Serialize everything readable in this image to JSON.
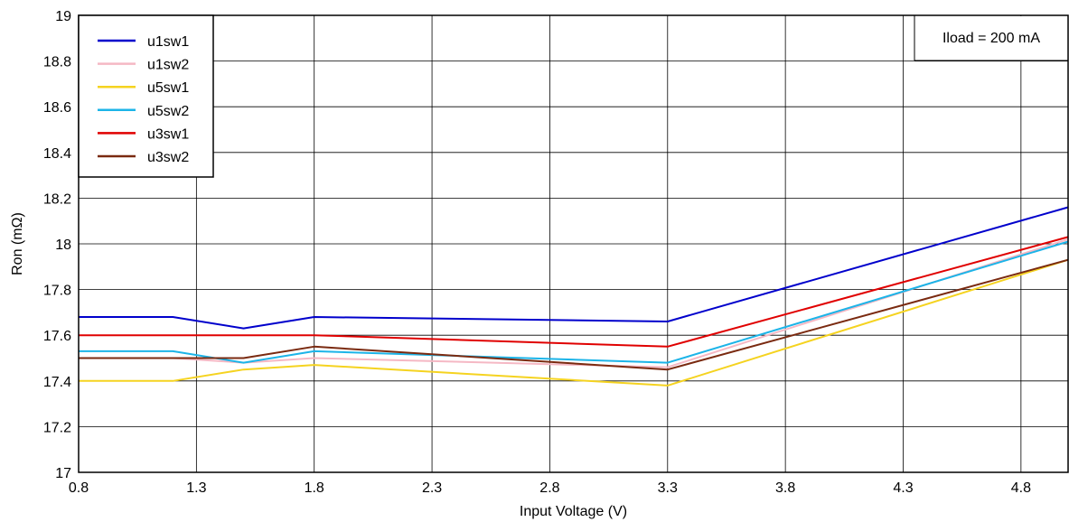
{
  "chart_data": {
    "type": "line",
    "title": "",
    "xlabel": "Input Voltage (V)",
    "ylabel": "Ron (mΩ)",
    "xlim": [
      0.8,
      5.0
    ],
    "ylim": [
      17,
      19
    ],
    "xticks": [
      "0.8",
      "1.3",
      "1.8",
      "2.3",
      "2.8",
      "3.3",
      "3.8",
      "4.3",
      "4.8"
    ],
    "yticks": [
      "17",
      "17.2",
      "17.4",
      "17.6",
      "17.8",
      "18",
      "18.2",
      "18.4",
      "18.6",
      "18.8",
      "19"
    ],
    "grid": true,
    "legend_position": "top-left",
    "annotation": "Iload = 200 mA",
    "series": [
      {
        "name": "u1sw1",
        "color": "#0000cc",
        "x": [
          0.8,
          1.2,
          1.5,
          1.8,
          3.3,
          5.0
        ],
        "y": [
          17.68,
          17.68,
          17.63,
          17.68,
          17.66,
          18.16
        ]
      },
      {
        "name": "u1sw2",
        "color": "#f5b8c4",
        "x": [
          0.8,
          1.2,
          1.5,
          1.8,
          3.3,
          5.0
        ],
        "y": [
          17.5,
          17.5,
          17.48,
          17.5,
          17.46,
          18.02
        ]
      },
      {
        "name": "u5sw1",
        "color": "#f5d320",
        "x": [
          0.8,
          1.2,
          1.5,
          1.8,
          3.3,
          5.0
        ],
        "y": [
          17.4,
          17.4,
          17.45,
          17.47,
          17.38,
          17.93
        ]
      },
      {
        "name": "u5sw2",
        "color": "#1cb4e8",
        "x": [
          0.8,
          1.2,
          1.5,
          1.8,
          3.3,
          5.0
        ],
        "y": [
          17.53,
          17.53,
          17.48,
          17.53,
          17.48,
          18.01
        ]
      },
      {
        "name": "u3sw1",
        "color": "#e00000",
        "x": [
          0.8,
          1.2,
          1.5,
          1.8,
          3.3,
          5.0
        ],
        "y": [
          17.6,
          17.6,
          17.6,
          17.6,
          17.55,
          18.03
        ]
      },
      {
        "name": "u3sw2",
        "color": "#7a2a10",
        "x": [
          0.8,
          1.2,
          1.5,
          1.8,
          3.3,
          5.0
        ],
        "y": [
          17.5,
          17.5,
          17.5,
          17.55,
          17.45,
          17.93
        ]
      }
    ]
  }
}
